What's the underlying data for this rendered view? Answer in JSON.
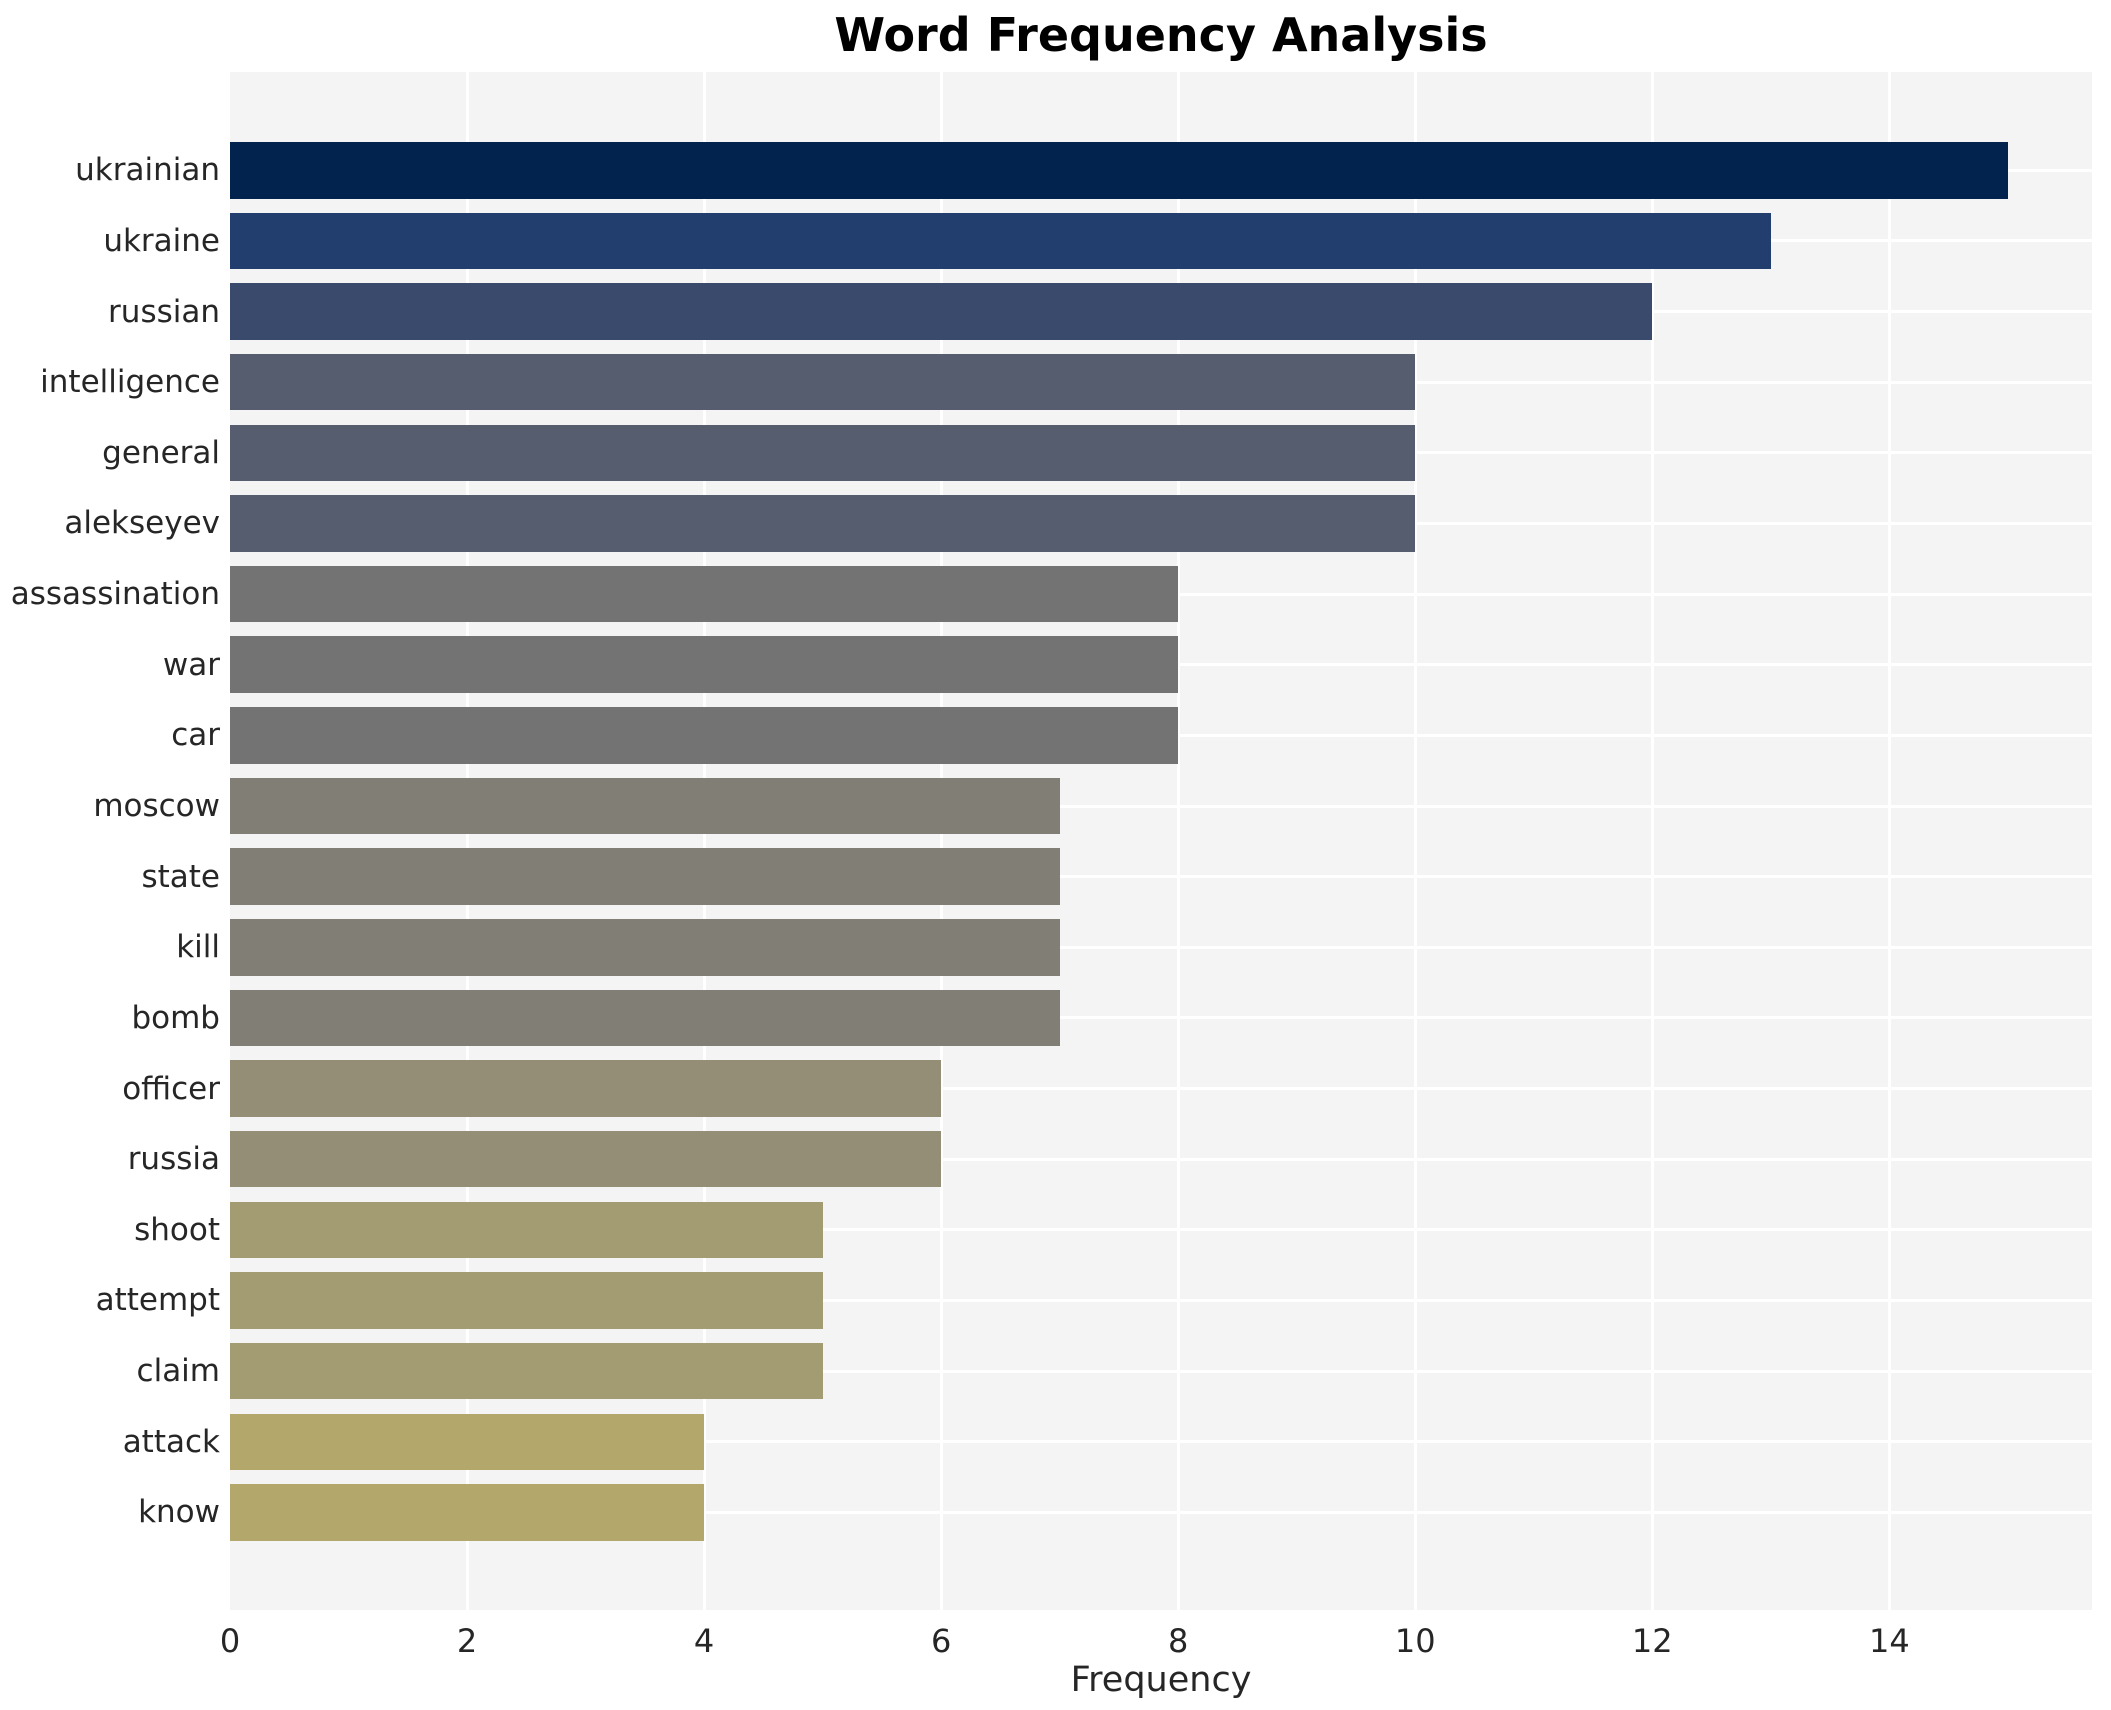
{
  "title": "Word Frequency Analysis",
  "chart_data": {
    "type": "bar",
    "orientation": "horizontal",
    "title": "Word Frequency Analysis",
    "xlabel": "Frequency",
    "ylabel": "",
    "xlim": [
      0,
      15.71
    ],
    "xticks": [
      0,
      2,
      4,
      6,
      8,
      10,
      12,
      14
    ],
    "grid": true,
    "legend": "none",
    "plot_background": "#f4f4f5",
    "grid_color": "#ffffff",
    "text_color": "#262626",
    "categories": [
      "ukrainian",
      "ukraine",
      "russian",
      "intelligence",
      "general",
      "alekseyev",
      "assassination",
      "war",
      "car",
      "moscow",
      "state",
      "kill",
      "bomb",
      "officer",
      "russia",
      "shoot",
      "attempt",
      "claim",
      "attack",
      "know"
    ],
    "values": [
      15,
      13,
      12,
      10,
      10,
      10,
      8,
      8,
      8,
      7,
      7,
      7,
      7,
      6,
      6,
      5,
      5,
      5,
      4,
      4
    ],
    "bar_colors": [
      "#01234e",
      "#223e6e",
      "#3a4a6c",
      "#565d6f",
      "#565d6f",
      "#565d6f",
      "#737373",
      "#737373",
      "#737373",
      "#817e75",
      "#817e75",
      "#817e75",
      "#817e75",
      "#948e76",
      "#948e76",
      "#a39c73",
      "#a39c73",
      "#a39c73",
      "#b4a76b",
      "#b4a76b"
    ]
  }
}
